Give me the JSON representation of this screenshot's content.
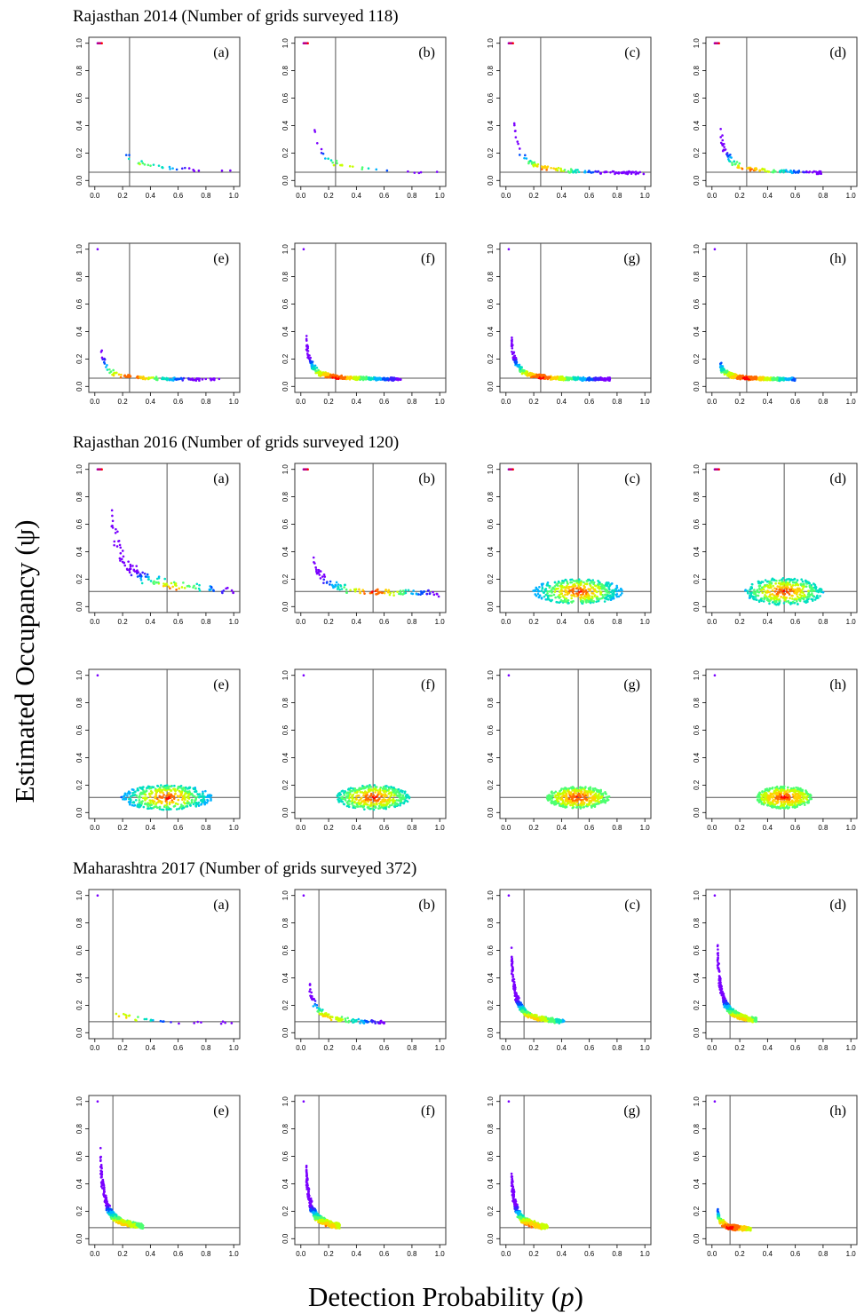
{
  "titles": {
    "s1": "Rajasthan 2014 (Number of grids surveyed 118)",
    "s2": "Rajasthan 2016 (Number of grids surveyed 120)",
    "s3": "Maharashtra 2017 (Number of grids surveyed 372)"
  },
  "ylabel": "Estimated Occupancy (ψ)",
  "xlabel_main": "Detection Probability (",
  "xlabel_var": "p",
  "xlabel_end": ")",
  "panel_labels": [
    "(a)",
    "(b)",
    "(c)",
    "(d)",
    "(e)",
    "(f)",
    "(g)",
    "(h)"
  ],
  "colors": {
    "axis": "#000000",
    "refline": "#555555",
    "frame": "#333333",
    "palette": [
      "#7a00ff",
      "#3b1fff",
      "#0050ff",
      "#00b4ff",
      "#00e0c0",
      "#4dff70",
      "#c8ff00",
      "#ffd200",
      "#ff6a00",
      "#ff0000"
    ]
  },
  "chart_data": [
    {
      "type": "scatter",
      "title": "Rajasthan 2014 (Number of grids surveyed 118)",
      "xlabel": "Detection Probability (p)",
      "ylabel": "Estimated Occupancy (ψ)",
      "xlim": [
        0,
        1
      ],
      "ylim": [
        0,
        1
      ],
      "xticks": [
        "0.0",
        "0.2",
        "0.4",
        "0.6",
        "0.8",
        "1.0"
      ],
      "yticks": [
        "0.0",
        "0.2",
        "0.4",
        "0.6",
        "0.8",
        "1.0"
      ],
      "ref_x": 0.25,
      "ref_y": 0.06,
      "panels": [
        {
          "label": "(a)",
          "x_range": [
            0.18,
            1.0
          ],
          "y_max": 0.28,
          "spread": 0.0,
          "density": "low"
        },
        {
          "label": "(b)",
          "x_range": [
            0.08,
            1.0
          ],
          "y_max": 0.5,
          "spread": 0.1,
          "density": "low"
        },
        {
          "label": "(c)",
          "x_range": [
            0.06,
            1.0
          ],
          "y_max": 0.47,
          "spread": 0.12,
          "density": "medium"
        },
        {
          "label": "(d)",
          "x_range": [
            0.06,
            0.8
          ],
          "y_max": 0.42,
          "spread": 0.14,
          "density": "medium"
        },
        {
          "label": "(e)",
          "x_range": [
            0.04,
            0.92
          ],
          "y_max": 0.36,
          "spread": 0.16,
          "density": "medium"
        },
        {
          "label": "(f)",
          "x_range": [
            0.04,
            0.72
          ],
          "y_max": 0.38,
          "spread": 0.18,
          "density": "high"
        },
        {
          "label": "(g)",
          "x_range": [
            0.04,
            0.75
          ],
          "y_max": 0.38,
          "spread": 0.2,
          "density": "high"
        },
        {
          "label": "(h)",
          "x_range": [
            0.06,
            0.6
          ],
          "y_max": 0.18,
          "spread": 0.22,
          "density": "high"
        }
      ]
    },
    {
      "type": "scatter",
      "title": "Rajasthan 2016 (Number of grids surveyed 120)",
      "xlabel": "Detection Probability (p)",
      "ylabel": "Estimated Occupancy (ψ)",
      "xlim": [
        0,
        1
      ],
      "ylim": [
        0,
        1
      ],
      "xticks": [
        "0.0",
        "0.2",
        "0.4",
        "0.6",
        "0.8",
        "1.0"
      ],
      "yticks": [
        "0.0",
        "0.2",
        "0.4",
        "0.6",
        "0.8",
        "1.0"
      ],
      "ref_x": 0.52,
      "ref_y": 0.11,
      "panels": [
        {
          "label": "(a)",
          "x_range": [
            0.12,
            1.0
          ],
          "y_max": 0.75,
          "spread": 0.2,
          "density": "medium"
        },
        {
          "label": "(b)",
          "x_range": [
            0.08,
            1.0
          ],
          "y_max": 0.45,
          "spread": 0.25,
          "density": "medium"
        },
        {
          "label": "(c)",
          "x_range": [
            0.14,
            0.8
          ],
          "y_max": 0.22,
          "spread": 0.3,
          "density": "high"
        },
        {
          "label": "(d)",
          "x_range": [
            0.18,
            0.75
          ],
          "y_max": 0.24,
          "spread": 0.32,
          "density": "high"
        },
        {
          "label": "(e)",
          "x_range": [
            0.14,
            0.8
          ],
          "y_max": 0.22,
          "spread": 0.35,
          "density": "high"
        },
        {
          "label": "(f)",
          "x_range": [
            0.22,
            0.75
          ],
          "y_max": 0.22,
          "spread": 0.36,
          "density": "high"
        },
        {
          "label": "(g)",
          "x_range": [
            0.3,
            0.75
          ],
          "y_max": 0.2,
          "spread": 0.37,
          "density": "high"
        },
        {
          "label": "(h)",
          "x_range": [
            0.3,
            0.7
          ],
          "y_max": 0.2,
          "spread": 0.38,
          "density": "high"
        }
      ]
    },
    {
      "type": "scatter",
      "title": "Maharashtra 2017 (Number of grids surveyed 372)",
      "xlabel": "Detection Probability (p)",
      "ylabel": "Estimated Occupancy (ψ)",
      "xlim": [
        0,
        1
      ],
      "ylim": [
        0,
        1
      ],
      "xticks": [
        "0.0",
        "0.2",
        "0.4",
        "0.6",
        "0.8",
        "1.0"
      ],
      "yticks": [
        "0.0",
        "0.2",
        "0.4",
        "0.6",
        "0.8",
        "1.0"
      ],
      "ref_x": 0.13,
      "ref_y": 0.08,
      "panels": [
        {
          "label": "(a)",
          "x_range": [
            0.1,
            1.0
          ],
          "y_max": 0.27,
          "spread": 0.05,
          "density": "low"
        },
        {
          "label": "(b)",
          "x_range": [
            0.06,
            0.62
          ],
          "y_max": 0.42,
          "spread": 0.1,
          "density": "medium"
        },
        {
          "label": "(c)",
          "x_range": [
            0.04,
            0.42
          ],
          "y_max": 0.62,
          "spread": 0.12,
          "density": "high"
        },
        {
          "label": "(d)",
          "x_range": [
            0.04,
            0.32
          ],
          "y_max": 0.65,
          "spread": 0.14,
          "density": "high"
        },
        {
          "label": "(e)",
          "x_range": [
            0.04,
            0.35
          ],
          "y_max": 0.68,
          "spread": 0.16,
          "density": "high"
        },
        {
          "label": "(f)",
          "x_range": [
            0.04,
            0.28
          ],
          "y_max": 0.55,
          "spread": 0.18,
          "density": "high"
        },
        {
          "label": "(g)",
          "x_range": [
            0.04,
            0.3
          ],
          "y_max": 0.5,
          "spread": 0.2,
          "density": "high"
        },
        {
          "label": "(h)",
          "x_range": [
            0.04,
            0.28
          ],
          "y_max": 0.22,
          "spread": 0.22,
          "density": "high"
        }
      ]
    }
  ]
}
